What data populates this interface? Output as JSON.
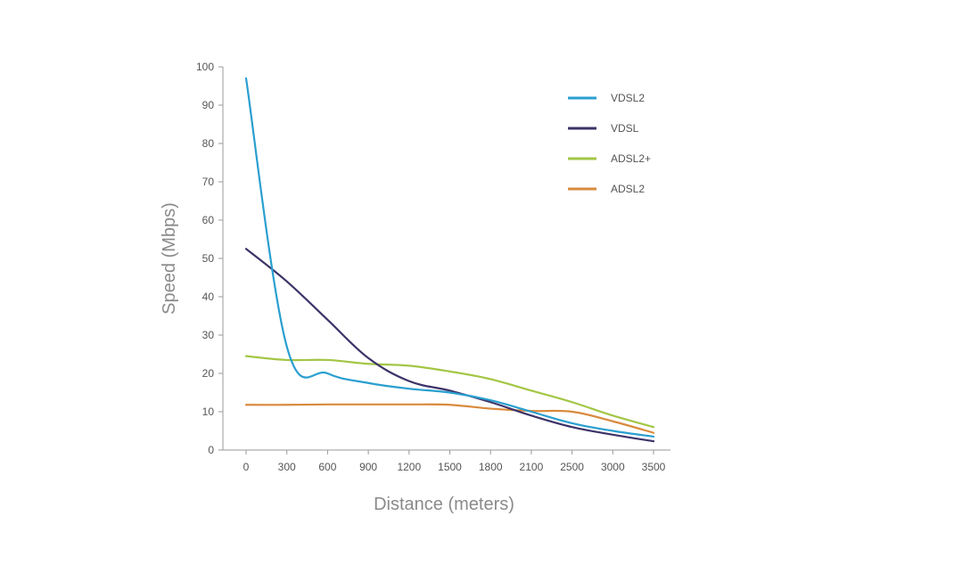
{
  "chart_data": {
    "type": "line",
    "title": "",
    "xlabel": "Distance (meters)",
    "ylabel": "Speed (Mbps)",
    "categories": [
      "0",
      "300",
      "600",
      "900",
      "1200",
      "1500",
      "1800",
      "2100",
      "2500",
      "3000",
      "3500"
    ],
    "y_ticks": [
      "0",
      "10",
      "20",
      "30",
      "40",
      "50",
      "60",
      "70",
      "80",
      "90",
      "100"
    ],
    "ylim": [
      0,
      100
    ],
    "grid": false,
    "legend_position": "top-right",
    "series": [
      {
        "name": "VDSL2",
        "color": "#2a9fd0",
        "values": [
          97,
          27,
          20,
          17.5,
          16,
          15,
          13,
          10,
          7,
          5,
          3.5
        ]
      },
      {
        "name": "VDSL",
        "color": "#3d3368",
        "values": [
          52.5,
          44,
          34,
          24,
          18,
          15.5,
          12.5,
          9,
          6,
          4,
          2.3
        ]
      },
      {
        "name": "ADSL2+",
        "color": "#a3c645",
        "values": [
          24.5,
          23.5,
          23.5,
          22.5,
          22,
          20.5,
          18.5,
          15.5,
          12.5,
          9,
          6
        ]
      },
      {
        "name": "ADSL2",
        "color": "#d98a3d",
        "values": [
          11.8,
          11.8,
          11.9,
          11.9,
          11.9,
          11.8,
          10.8,
          10.2,
          10,
          7.5,
          4.5
        ]
      }
    ]
  }
}
